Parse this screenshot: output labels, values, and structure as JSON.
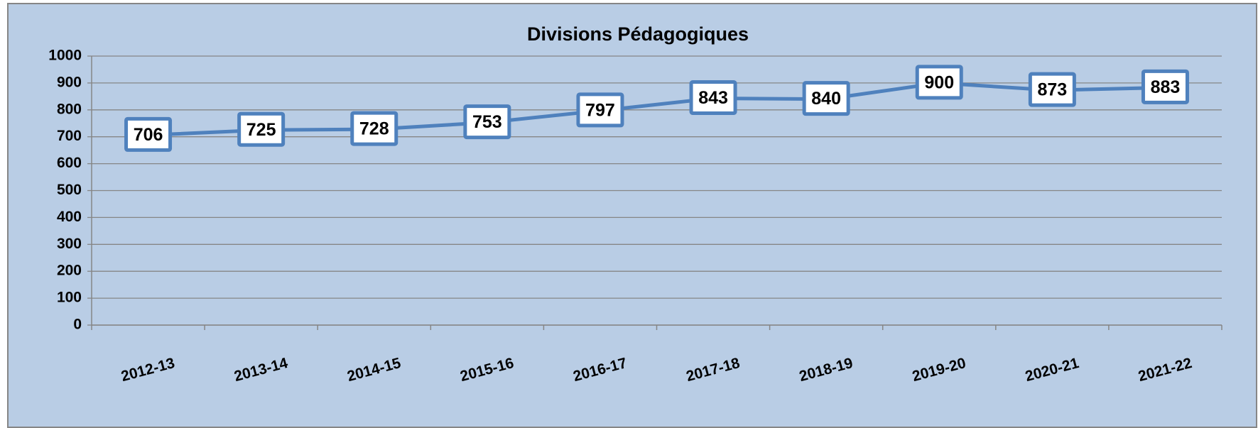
{
  "chart_data": {
    "type": "line",
    "title": "Divisions Pédagogiques",
    "categories": [
      "2012-13",
      "2013-14",
      "2014-15",
      "2015-16",
      "2016-17",
      "2017-18",
      "2018-19",
      "2019-20",
      "2020-21",
      "2021-22"
    ],
    "series": [
      {
        "name": "Divisions Pédagogiques",
        "color": "#4f81bd",
        "values": [
          706,
          725,
          728,
          753,
          797,
          843,
          840,
          900,
          873,
          883
        ]
      }
    ],
    "ylim": [
      0,
      1000
    ],
    "yticks": [
      0,
      100,
      200,
      300,
      400,
      500,
      600,
      700,
      800,
      900,
      1000
    ],
    "grid": true,
    "legend": false
  }
}
